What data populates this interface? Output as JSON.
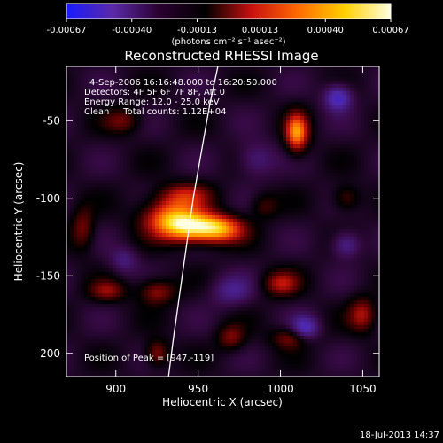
{
  "chart_data": {
    "type": "heatmap",
    "title": "Reconstructed RHESSI Image",
    "xlabel": "Heliocentric X (arcsec)",
    "ylabel": "Heliocentric Y (arcsec)",
    "xlim": [
      870,
      1060
    ],
    "ylim": [
      -215,
      -15
    ],
    "xticks": [
      900,
      950,
      1000,
      1050
    ],
    "yticks": [
      -50,
      -100,
      -150,
      -200
    ],
    "colorbar": {
      "ticks": [
        "-0.00067",
        "-0.00040",
        "-0.00013",
        "0.00013",
        "0.00040",
        "0.00067"
      ],
      "range": [
        -0.00067,
        0.00067
      ],
      "unit_label": "(photons cm⁻² s⁻¹ asec⁻²)",
      "colors": [
        "#1a1aff",
        "#5a2aa8",
        "#2a0030",
        "#000000",
        "#c81010",
        "#ff6a00",
        "#ffd000",
        "#ffffe0"
      ]
    },
    "annotations": [
      "4-Sep-2006 16:16:48.000 to 16:20:50.000",
      "Detectors: 4F 5F 6F 7F 8F, Att 0",
      "Energy Range: 12.0 - 25.0 keV",
      "Clean     Total counts: 1.12E+04"
    ],
    "peak_label": "Position of Peak = [947,-119]",
    "peak": {
      "x": 947,
      "y": -119
    },
    "limb": [
      [
        932,
        -215
      ],
      [
        935,
        -190
      ],
      [
        939,
        -160
      ],
      [
        943,
        -130
      ],
      [
        947,
        -100
      ],
      [
        952,
        -70
      ],
      [
        957,
        -40
      ],
      [
        962,
        -15
      ]
    ],
    "sources": [
      {
        "x": 947,
        "y": -119,
        "amp": 0.00067,
        "sx": 14,
        "sy": 7
      },
      {
        "x": 932,
        "y": -111,
        "amp": 0.0004,
        "sx": 12,
        "sy": 8
      },
      {
        "x": 965,
        "y": -120,
        "amp": 0.00035,
        "sx": 10,
        "sy": 6
      },
      {
        "x": 942,
        "y": -98,
        "amp": 0.00028,
        "sx": 12,
        "sy": 6
      },
      {
        "x": 1010,
        "y": -58,
        "amp": 0.00055,
        "sx": 5,
        "sy": 9
      },
      {
        "x": 925,
        "y": -160,
        "amp": 0.0003,
        "sx": 8,
        "sy": 6
      },
      {
        "x": 895,
        "y": -160,
        "amp": 0.00025,
        "sx": 8,
        "sy": 5
      },
      {
        "x": 1000,
        "y": -155,
        "amp": 0.0003,
        "sx": 8,
        "sy": 6
      },
      {
        "x": 1050,
        "y": -175,
        "amp": 0.0003,
        "sx": 6,
        "sy": 8
      },
      {
        "x": 1008,
        "y": -190,
        "amp": 0.0003,
        "sx": 9,
        "sy": 5
      },
      {
        "x": 970,
        "y": -190,
        "amp": 0.00025,
        "sx": 6,
        "sy": 6
      },
      {
        "x": 880,
        "y": -120,
        "amp": 0.00025,
        "sx": 5,
        "sy": 10
      },
      {
        "x": 1040,
        "y": -100,
        "amp": 0.00022,
        "sx": 6,
        "sy": 6
      },
      {
        "x": 905,
        "y": -50,
        "amp": 0.00022,
        "sx": 8,
        "sy": 6
      },
      {
        "x": 925,
        "y": -200,
        "amp": 0.0003,
        "sx": 5,
        "sy": 6
      },
      {
        "x": 990,
        "y": -105,
        "amp": 0.00018,
        "sx": 6,
        "sy": 6
      },
      {
        "x": 1035,
        "y": -35,
        "amp": -0.0004,
        "sx": 6,
        "sy": 6
      },
      {
        "x": 1015,
        "y": -185,
        "amp": -0.0004,
        "sx": 6,
        "sy": 6
      },
      {
        "x": 1040,
        "y": -130,
        "amp": -0.00028,
        "sx": 6,
        "sy": 6
      },
      {
        "x": 985,
        "y": -75,
        "amp": -0.00022,
        "sx": 8,
        "sy": 8
      },
      {
        "x": 970,
        "y": -160,
        "amp": -0.00022,
        "sx": 9,
        "sy": 7
      },
      {
        "x": 905,
        "y": -140,
        "amp": -0.0002,
        "sx": 6,
        "sy": 6
      }
    ]
  },
  "footer": {
    "timestamp": "18-Jul-2013 14:37"
  }
}
